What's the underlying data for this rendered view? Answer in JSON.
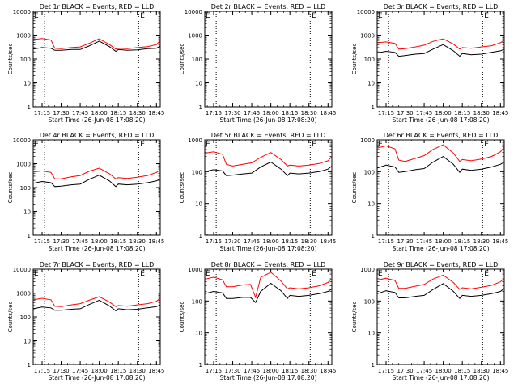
{
  "figure": {
    "xlabel": "Start Time (26-Jun-08 17:08:20)",
    "ylabel": "Counts/sec",
    "x_ticks": [
      "17:15",
      "17:30",
      "17:45",
      "18:00",
      "18:15",
      "18:30",
      "18:45"
    ],
    "y_ticks": [
      "1",
      "10",
      "100",
      "1000",
      "10000"
    ],
    "marker_label": "E",
    "colors": {
      "events": "#000000",
      "lld": "#ff0000",
      "frame": "#000000"
    }
  },
  "chart_data": [
    {
      "type": "line",
      "title": "Det 1r BLACK = Events, RED = LLD",
      "xlabel": "Start Time (26-Jun-08 17:08:20)",
      "ylabel": "Counts/sec",
      "x_range": [
        "17:08",
        "18:48"
      ],
      "y_scale": "log",
      "ylim": [
        1,
        10000
      ],
      "vlines": [
        "17:17",
        "18:31"
      ],
      "x": [
        "17:08",
        "17:15",
        "17:22",
        "17:25",
        "17:30",
        "17:38",
        "17:45",
        "17:52",
        "18:00",
        "18:08",
        "18:13",
        "18:15",
        "18:22",
        "18:30",
        "18:38",
        "18:45",
        "18:48"
      ],
      "series": [
        {
          "name": "Events",
          "values": [
            260,
            300,
            280,
            230,
            230,
            250,
            250,
            350,
            560,
            330,
            210,
            250,
            230,
            240,
            270,
            280,
            350
          ]
        },
        {
          "name": "LLD",
          "values": [
            650,
            720,
            620,
            280,
            270,
            300,
            320,
            450,
            700,
            400,
            260,
            280,
            270,
            300,
            330,
            400,
            600
          ]
        }
      ]
    },
    {
      "type": "line",
      "title": "Det 2r BLACK = Events, RED = LLD",
      "xlabel": "Start Time (26-Jun-08 17:08:20)",
      "ylabel": "Counts/sec",
      "x_range": [
        "17:08",
        "18:48"
      ],
      "y_scale": "log",
      "ylim": [
        1,
        10000
      ],
      "vlines": [
        "17:17",
        "18:31"
      ],
      "x": [],
      "series": []
    },
    {
      "type": "line",
      "title": "Det 3r BLACK = Events, RED = LLD",
      "xlabel": "Start Time (26-Jun-08 17:08:20)",
      "ylabel": "Counts/sec",
      "x_range": [
        "17:08",
        "18:48"
      ],
      "y_scale": "log",
      "ylim": [
        1,
        10000
      ],
      "vlines": [
        "17:17",
        "18:31"
      ],
      "x": [
        "17:08",
        "17:15",
        "17:22",
        "17:25",
        "17:30",
        "17:38",
        "17:45",
        "17:52",
        "18:00",
        "18:08",
        "18:13",
        "18:15",
        "18:22",
        "18:30",
        "18:38",
        "18:45",
        "18:48"
      ],
      "series": [
        {
          "name": "Events",
          "values": [
            180,
            210,
            190,
            130,
            140,
            160,
            170,
            260,
            400,
            220,
            130,
            170,
            150,
            160,
            190,
            220,
            260
          ]
        },
        {
          "name": "LLD",
          "values": [
            480,
            520,
            450,
            260,
            270,
            320,
            380,
            550,
            700,
            420,
            260,
            300,
            280,
            320,
            360,
            480,
            600
          ]
        }
      ]
    },
    {
      "type": "line",
      "title": "Det 4r BLACK = Events, RED = LLD",
      "xlabel": "Start Time (26-Jun-08 17:08:20)",
      "ylabel": "Counts/sec",
      "x_range": [
        "17:08",
        "18:48"
      ],
      "y_scale": "log",
      "ylim": [
        1,
        10000
      ],
      "vlines": [
        "17:17",
        "18:31"
      ],
      "x": [
        "17:08",
        "17:15",
        "17:22",
        "17:25",
        "17:30",
        "17:38",
        "17:45",
        "17:52",
        "18:00",
        "18:08",
        "18:13",
        "18:15",
        "18:22",
        "18:30",
        "18:38",
        "18:45",
        "18:48"
      ],
      "series": [
        {
          "name": "Events",
          "values": [
            150,
            180,
            160,
            110,
            115,
            130,
            140,
            220,
            330,
            190,
            110,
            140,
            130,
            140,
            160,
            190,
            230
          ]
        },
        {
          "name": "LLD",
          "values": [
            450,
            500,
            430,
            230,
            230,
            280,
            320,
            480,
            650,
            380,
            230,
            260,
            240,
            270,
            320,
            430,
            550
          ]
        }
      ]
    },
    {
      "type": "line",
      "title": "Det 5r BLACK = Events, RED = LLD",
      "xlabel": "Start Time (26-Jun-08 17:08:20)",
      "ylabel": "Counts/sec",
      "x_range": [
        "17:08",
        "18:48"
      ],
      "y_scale": "log",
      "ylim": [
        1,
        1000
      ],
      "vlines": [
        "17:17",
        "18:31"
      ],
      "x": [
        "17:08",
        "17:15",
        "17:22",
        "17:25",
        "17:30",
        "17:38",
        "17:45",
        "17:52",
        "18:00",
        "18:08",
        "18:13",
        "18:15",
        "18:22",
        "18:30",
        "18:38",
        "18:45",
        "18:48"
      ],
      "series": [
        {
          "name": "Events",
          "values": [
            100,
            115,
            105,
            75,
            78,
            85,
            90,
            140,
            200,
            120,
            75,
            90,
            85,
            90,
            100,
            120,
            150
          ]
        },
        {
          "name": "LLD",
          "values": [
            380,
            420,
            350,
            170,
            150,
            170,
            190,
            280,
            400,
            240,
            150,
            160,
            150,
            160,
            180,
            220,
            300
          ]
        }
      ]
    },
    {
      "type": "line",
      "title": "Det 6r BLACK = Events, RED = LLD",
      "xlabel": "Start Time (26-Jun-08 17:08:20)",
      "ylabel": "Counts/sec",
      "x_range": [
        "17:08",
        "18:48"
      ],
      "y_scale": "log",
      "ylim": [
        1,
        1000
      ],
      "vlines": [
        "17:17",
        "18:31"
      ],
      "x": [
        "17:08",
        "17:15",
        "17:22",
        "17:25",
        "17:30",
        "17:38",
        "17:45",
        "17:52",
        "18:00",
        "18:08",
        "18:13",
        "18:15",
        "18:22",
        "18:30",
        "18:38",
        "18:45",
        "18:48"
      ],
      "series": [
        {
          "name": "Events",
          "values": [
            130,
            160,
            140,
            95,
            100,
            115,
            125,
            200,
            300,
            170,
            95,
            120,
            110,
            120,
            140,
            170,
            200
          ]
        },
        {
          "name": "LLD",
          "values": [
            550,
            650,
            520,
            230,
            210,
            260,
            320,
            500,
            700,
            380,
            210,
            240,
            220,
            250,
            300,
            420,
            600
          ]
        }
      ]
    },
    {
      "type": "line",
      "title": "Det 7r BLACK = Events, RED = LLD",
      "xlabel": "Start Time (26-Jun-08 17:08:20)",
      "ylabel": "Counts/sec",
      "x_range": [
        "17:08",
        "18:48"
      ],
      "y_scale": "log",
      "ylim": [
        1,
        10000
      ],
      "vlines": [
        "17:17",
        "18:31"
      ],
      "x": [
        "17:08",
        "17:15",
        "17:22",
        "17:25",
        "17:30",
        "17:38",
        "17:45",
        "17:52",
        "18:00",
        "18:08",
        "18:13",
        "18:15",
        "18:22",
        "18:30",
        "18:38",
        "18:45",
        "18:48"
      ],
      "series": [
        {
          "name": "Events",
          "values": [
            220,
            260,
            240,
            190,
            190,
            210,
            220,
            330,
            500,
            290,
            180,
            220,
            200,
            210,
            240,
            270,
            320
          ]
        },
        {
          "name": "LLD",
          "values": [
            520,
            600,
            520,
            280,
            270,
            320,
            360,
            500,
            700,
            420,
            270,
            300,
            280,
            320,
            360,
            450,
            600
          ]
        }
      ]
    },
    {
      "type": "line",
      "title": "Det 8r BLACK = Events, RED = LLD",
      "xlabel": "Start Time (26-Jun-08 17:08:20)",
      "ylabel": "Counts/sec",
      "x_range": [
        "17:08",
        "18:48"
      ],
      "y_scale": "log",
      "ylim": [
        1,
        1000
      ],
      "vlines": [
        "17:17",
        "18:31"
      ],
      "x": [
        "17:08",
        "17:15",
        "17:22",
        "17:25",
        "17:30",
        "17:38",
        "17:44",
        "17:48",
        "17:52",
        "18:00",
        "18:08",
        "18:13",
        "18:15",
        "18:22",
        "18:30",
        "18:38",
        "18:45",
        "18:48"
      ],
      "series": [
        {
          "name": "Events",
          "values": [
            170,
            200,
            180,
            120,
            120,
            130,
            130,
            90,
            200,
            360,
            210,
            120,
            150,
            140,
            150,
            170,
            200,
            240
          ]
        },
        {
          "name": "LLD",
          "values": [
            480,
            560,
            460,
            280,
            280,
            320,
            330,
            130,
            550,
            800,
            420,
            240,
            260,
            240,
            260,
            300,
            380,
            520
          ]
        }
      ]
    },
    {
      "type": "line",
      "title": "Det 9r BLACK = Events, RED = LLD",
      "xlabel": "Start Time (26-Jun-08 17:08:20)",
      "ylabel": "Counts/sec",
      "x_range": [
        "17:08",
        "18:48"
      ],
      "y_scale": "log",
      "ylim": [
        1,
        1000
      ],
      "vlines": [
        "17:17",
        "18:31"
      ],
      "x": [
        "17:08",
        "17:15",
        "17:22",
        "17:25",
        "17:30",
        "17:38",
        "17:45",
        "17:52",
        "18:00",
        "18:08",
        "18:13",
        "18:15",
        "18:22",
        "18:30",
        "18:38",
        "18:45",
        "18:48"
      ],
      "series": [
        {
          "name": "Events",
          "values": [
            170,
            210,
            185,
            125,
            125,
            140,
            150,
            230,
            350,
            200,
            120,
            150,
            140,
            150,
            170,
            200,
            250
          ]
        },
        {
          "name": "LLD",
          "values": [
            450,
            520,
            440,
            250,
            250,
            290,
            330,
            490,
            650,
            380,
            230,
            260,
            240,
            270,
            310,
            400,
            520
          ]
        }
      ]
    }
  ]
}
